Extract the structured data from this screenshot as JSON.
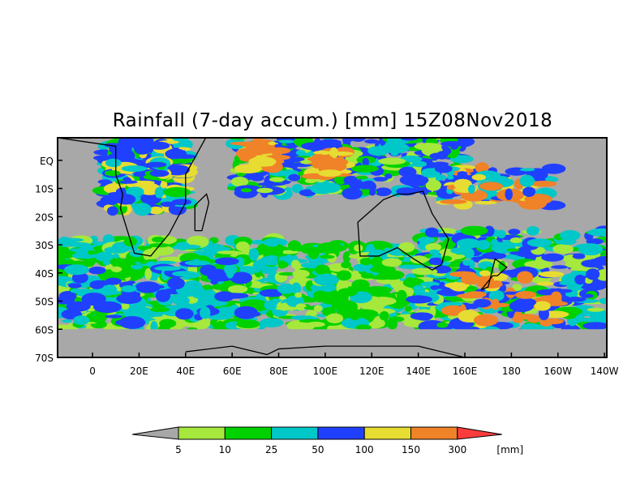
{
  "title": "Rainfall (7-day accum.) [mm] 15Z08Nov2018",
  "map": {
    "lat_ticks": [
      "EQ",
      "10S",
      "20S",
      "30S",
      "40S",
      "50S",
      "60S",
      "70S"
    ],
    "lat_values": [
      0,
      -10,
      -20,
      -30,
      -40,
      -50,
      -60,
      -70
    ],
    "lon_ticks": [
      "0",
      "20E",
      "40E",
      "60E",
      "80E",
      "100E",
      "120E",
      "140E",
      "160E",
      "180",
      "160W",
      "140W"
    ],
    "lon_values": [
      0,
      20,
      40,
      60,
      80,
      100,
      120,
      140,
      160,
      180,
      200,
      220
    ],
    "lon_range": [
      -15,
      221
    ],
    "lat_range": [
      8,
      -70
    ],
    "background_color": "#a8a8a8"
  },
  "colorbar": {
    "labels": [
      "5",
      "10",
      "25",
      "50",
      "100",
      "150",
      "300"
    ],
    "unit": "[mm]",
    "colors": [
      "#a8a8a8",
      "#a6e83c",
      "#00d200",
      "#00c8c8",
      "#2040ff",
      "#e6dc32",
      "#f08228",
      "#fa3c3c"
    ]
  }
}
